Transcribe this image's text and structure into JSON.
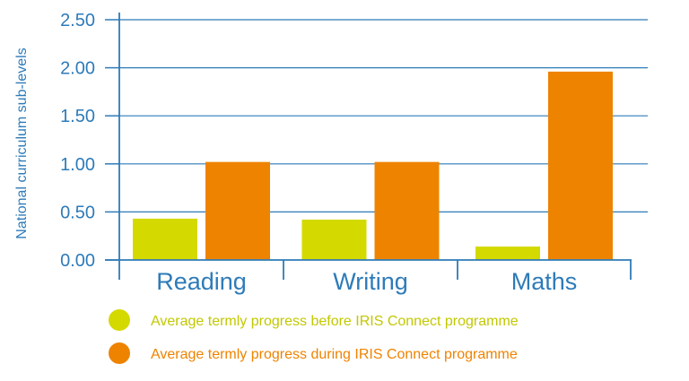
{
  "chart_data": {
    "type": "bar",
    "categories": [
      "Reading",
      "Writing",
      "Maths"
    ],
    "series": [
      {
        "name": "Average termly progress before IRIS Connect programme",
        "values": [
          0.43,
          0.42,
          0.14
        ]
      },
      {
        "name": "Average termly progress during IRIS Connect programme",
        "values": [
          1.02,
          1.02,
          1.96
        ]
      }
    ],
    "title": "",
    "xlabel": "",
    "ylabel": "National curriculum sub-levels",
    "ylim": [
      0,
      2.5
    ],
    "yticks": [
      "0.00",
      "0.50",
      "1.00",
      "1.50",
      "2.00",
      "2.50"
    ],
    "grid": true,
    "legend_position": "bottom"
  },
  "colors": {
    "axis": "#2e7bb8",
    "text": "#2e7bb8",
    "series": [
      "#d4d900",
      "#ee8300"
    ],
    "legend_text": [
      "#c2c800",
      "#ee8300"
    ]
  }
}
